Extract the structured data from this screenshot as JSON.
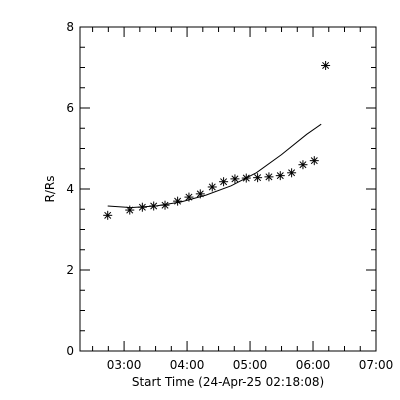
{
  "chart_data": {
    "type": "scatter",
    "xlabel": "Start Time (24-Apr-25 02:18:08)",
    "ylabel": "R/Rs",
    "x_unit": "hours after 02:18:08",
    "xlim": [
      0,
      4.7
    ],
    "ylim": [
      0,
      8
    ],
    "x_ticks": [
      {
        "value": 0.7,
        "label": "03:00"
      },
      {
        "value": 1.7,
        "label": "04:00"
      },
      {
        "value": 2.7,
        "label": "05:00"
      },
      {
        "value": 3.7,
        "label": "06:00"
      },
      {
        "value": 4.7,
        "label": "07:00"
      }
    ],
    "x_minor_ticks": [
      0.2,
      0.45,
      0.95,
      1.2,
      1.45,
      1.95,
      2.2,
      2.45,
      2.95,
      3.2,
      3.45,
      3.95,
      4.2,
      4.45
    ],
    "y_ticks": [
      {
        "value": 0,
        "label": "0"
      },
      {
        "value": 2,
        "label": "2"
      },
      {
        "value": 4,
        "label": "4"
      },
      {
        "value": 6,
        "label": "6"
      },
      {
        "value": 8,
        "label": "8"
      }
    ],
    "y_minor_ticks": [
      0.5,
      1,
      1.5,
      2.5,
      3,
      3.5,
      4.5,
      5,
      5.5,
      6.5,
      7,
      7.5
    ],
    "series": [
      {
        "kind": "points",
        "marker": "asterisk",
        "x": [
          0.44,
          0.79,
          0.99,
          1.17,
          1.35,
          1.55,
          1.73,
          1.91,
          2.1,
          2.28,
          2.46,
          2.64,
          2.82,
          3.0,
          3.18,
          3.36,
          3.54,
          3.72,
          3.9
        ],
        "y": [
          3.35,
          3.48,
          3.55,
          3.58,
          3.6,
          3.7,
          3.8,
          3.88,
          4.05,
          4.18,
          4.25,
          4.27,
          4.28,
          4.3,
          4.33,
          4.4,
          4.6,
          4.7,
          7.05
        ]
      },
      {
        "kind": "line",
        "x": [
          0.44,
          0.8,
          1.2,
          1.6,
          2.0,
          2.4,
          2.8,
          3.2,
          3.6,
          3.83
        ],
        "y": [
          3.58,
          3.54,
          3.58,
          3.68,
          3.85,
          4.08,
          4.4,
          4.85,
          5.35,
          5.6
        ]
      }
    ]
  }
}
